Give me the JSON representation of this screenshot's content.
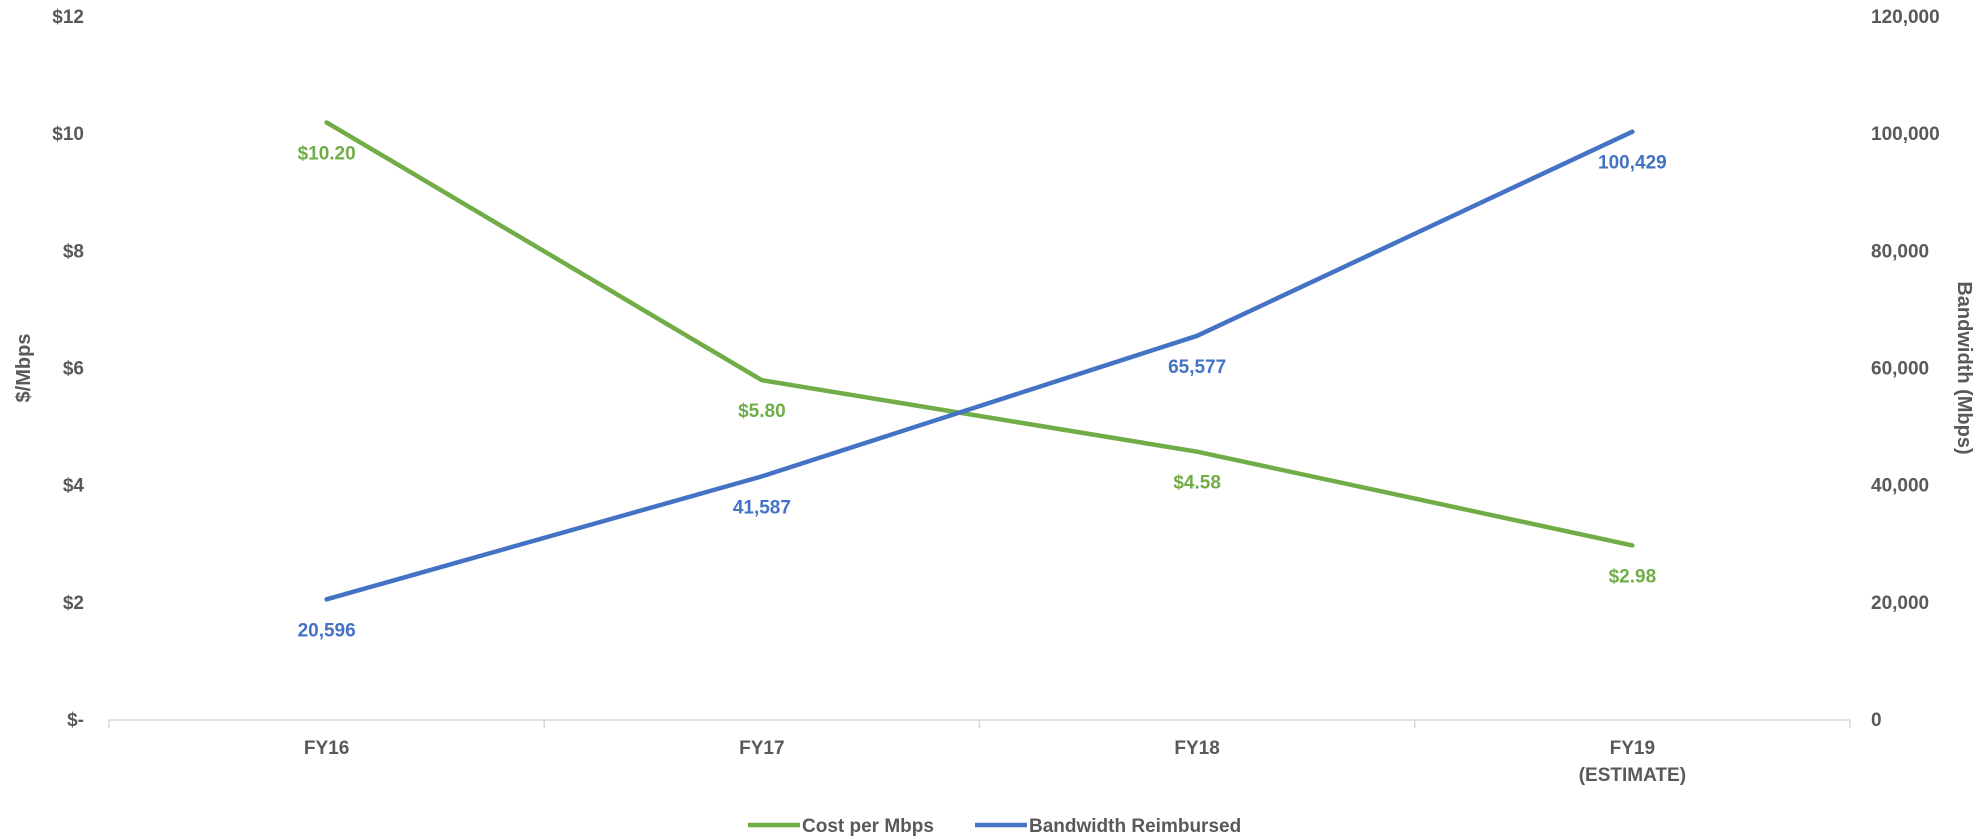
{
  "chart_data": {
    "type": "line",
    "categories": [
      [
        "FY16"
      ],
      [
        "FY17"
      ],
      [
        "FY18"
      ],
      [
        "FY19",
        "(ESTIMATE)"
      ]
    ],
    "y_left": {
      "label": "$/Mbps",
      "ticks": [
        "$-",
        "$2",
        "$4",
        "$6",
        "$8",
        "$10",
        "$12"
      ],
      "range": [
        0,
        12
      ]
    },
    "y_right": {
      "label": "Bandwidth (Mbps)",
      "ticks": [
        "0",
        "20,000",
        "40,000",
        "60,000",
        "80,000",
        "100,000",
        "120,000"
      ],
      "range": [
        0,
        120000
      ]
    },
    "series": [
      {
        "name": "Cost per Mbps",
        "axis": "left",
        "color": "#70AD47",
        "values": [
          10.2,
          5.8,
          4.58,
          2.98
        ],
        "labels": [
          "$10.20",
          "$5.80",
          "$4.58",
          "$2.98"
        ]
      },
      {
        "name": "Bandwidth Reimbursed",
        "axis": "right",
        "color": "#4472C4",
        "values": [
          20596,
          41587,
          65577,
          100429
        ],
        "labels": [
          "20,596",
          "41,587",
          "65,577",
          "100,429"
        ]
      }
    ],
    "grid": false,
    "legend_position": "bottom"
  }
}
